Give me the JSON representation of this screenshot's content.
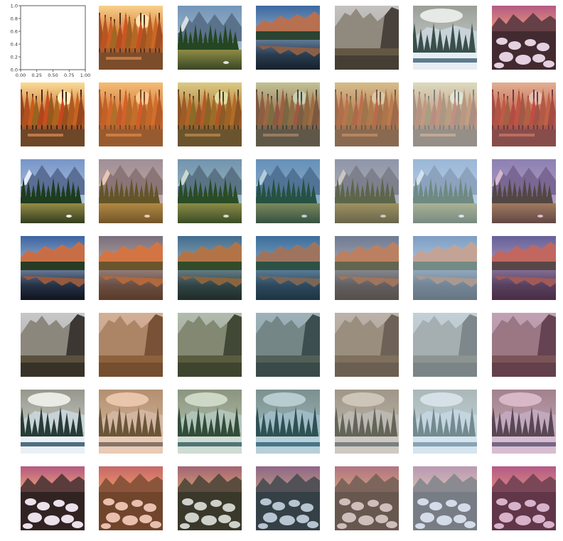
{
  "figure": {
    "empty_axes": {
      "xticks": [
        "0.00",
        "0.25",
        "0.50",
        "0.75",
        "1.00"
      ],
      "yticks": [
        "0.0",
        "0.2",
        "0.4",
        "0.6",
        "0.8",
        "1.0"
      ]
    },
    "scenes": [
      "autumn-forest",
      "mountain-lake",
      "lake-sunset",
      "granite-cliffs",
      "snowy-valley",
      "river-rocks"
    ],
    "styles": [
      "warm-orange",
      "green-natural",
      "teal-blue",
      "sepia-faded",
      "cold-blue",
      "pink-magenta"
    ],
    "colors": {
      "warm-orange": "#c8672a",
      "green-natural": "#4f7a3a",
      "teal-blue": "#3f7b8c",
      "sepia-faded": "#9a8a78",
      "cold-blue": "#9fb6c4",
      "pink-magenta": "#8a4b6e"
    }
  },
  "chart_data": {
    "type": "image-grid",
    "rows": 7,
    "cols": 7,
    "row_labels": [
      "autumn-forest",
      "mountain-lake",
      "lake-sunset",
      "granite-cliffs",
      "snowy-valley",
      "river-rocks"
    ],
    "col_labels": [
      "autumn-forest",
      "mountain-lake",
      "lake-sunset",
      "granite-cliffs",
      "snowy-valley",
      "river-rocks"
    ],
    "header_row": [
      "autumn-forest",
      "mountain-lake",
      "lake-sunset",
      "granite-cliffs",
      "snowy-valley",
      "river-rocks"
    ],
    "header_col": [
      "autumn-forest",
      "mountain-lake",
      "lake-sunset",
      "granite-cliffs",
      "snowy-valley",
      "river-rocks"
    ],
    "empty_axes": {
      "xlim": [
        0,
        1
      ],
      "ylim": [
        0,
        1
      ],
      "xticks": [
        0.0,
        0.25,
        0.5,
        0.75,
        1.0
      ],
      "yticks": [
        0.0,
        0.2,
        0.4,
        0.6,
        0.8,
        1.0
      ]
    }
  }
}
